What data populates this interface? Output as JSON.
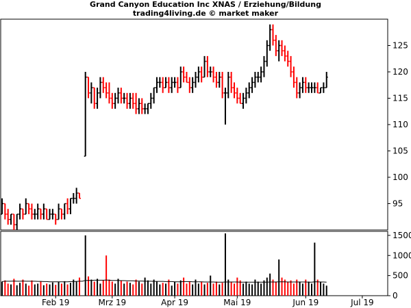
{
  "header": {
    "title": "Grand Canyon Education Inc XNAS / Erziehung/Bildung",
    "subtitle": "trading4living.de © market maker"
  },
  "colors": {
    "up": "#000000",
    "down": "#ff0000",
    "average": "#000000",
    "grid": "#000000"
  },
  "chart_data": [
    {
      "type": "ohlc",
      "title": "Grand Canyon Education Inc XNAS / Erziehung/Bildung",
      "ylim": [
        90,
        130
      ],
      "yticks": [
        95,
        100,
        105,
        110,
        115,
        120,
        125
      ],
      "ytick_labels": [
        "95",
        "100",
        "105",
        "110",
        "115",
        "120",
        "125"
      ],
      "x_labels": [
        {
          "label": "Feb 19",
          "index": 18
        },
        {
          "label": "Mrz 19",
          "index": 37
        },
        {
          "label": "Apr 19",
          "index": 58
        },
        {
          "label": "Mai 19",
          "index": 79
        },
        {
          "label": "Jun 19",
          "index": 102
        },
        {
          "label": "Jul 19",
          "index": 121
        }
      ],
      "n_days": 130,
      "bars": [
        [
          0,
          93,
          96,
          93,
          95
        ],
        [
          1,
          95,
          95,
          92,
          93
        ],
        [
          2,
          93,
          94,
          91,
          92
        ],
        [
          3,
          92,
          93,
          91,
          93
        ],
        [
          4,
          93,
          93,
          90,
          91
        ],
        [
          5,
          91,
          93,
          90,
          93
        ],
        [
          6,
          93,
          95,
          92,
          94
        ],
        [
          7,
          94,
          94,
          92,
          93
        ],
        [
          8,
          93,
          96,
          93,
          95
        ],
        [
          9,
          95,
          95,
          93,
          94
        ],
        [
          10,
          94,
          95,
          92,
          93
        ],
        [
          11,
          93,
          94,
          92,
          93
        ],
        [
          12,
          93,
          95,
          92,
          94
        ],
        [
          13,
          94,
          94,
          92,
          93
        ],
        [
          14,
          93,
          95,
          92,
          94
        ],
        [
          15,
          94,
          94,
          92,
          92
        ],
        [
          16,
          92,
          94,
          92,
          93
        ],
        [
          17,
          93,
          94,
          92,
          93
        ],
        [
          18,
          93,
          93,
          91,
          92
        ],
        [
          19,
          92,
          95,
          92,
          94
        ],
        [
          20,
          94,
          94,
          92,
          93
        ],
        [
          21,
          93,
          95,
          92,
          95
        ],
        [
          22,
          95,
          96,
          93,
          94
        ],
        [
          23,
          94,
          96,
          93,
          96
        ],
        [
          24,
          96,
          97,
          95,
          96
        ],
        [
          25,
          96,
          98,
          95,
          97
        ],
        [
          26,
          97,
          97,
          96,
          96
        ],
        [
          28,
          104,
          120,
          104,
          119
        ],
        [
          29,
          119,
          119,
          115,
          116
        ],
        [
          30,
          116,
          118,
          114,
          117
        ],
        [
          31,
          117,
          117,
          113,
          114
        ],
        [
          32,
          114,
          117,
          113,
          116
        ],
        [
          33,
          116,
          119,
          115,
          118
        ],
        [
          34,
          118,
          119,
          116,
          117
        ],
        [
          35,
          117,
          118,
          115,
          116
        ],
        [
          36,
          116,
          118,
          114,
          115
        ],
        [
          37,
          115,
          116,
          113,
          114
        ],
        [
          38,
          114,
          116,
          113,
          115
        ],
        [
          39,
          115,
          117,
          114,
          116
        ],
        [
          40,
          116,
          117,
          114,
          115
        ],
        [
          41,
          115,
          116,
          114,
          115
        ],
        [
          42,
          115,
          116,
          113,
          114
        ],
        [
          43,
          114,
          116,
          113,
          115
        ],
        [
          44,
          115,
          116,
          113,
          114
        ],
        [
          45,
          114,
          116,
          112,
          113
        ],
        [
          46,
          113,
          115,
          112,
          114
        ],
        [
          47,
          114,
          115,
          112,
          113
        ],
        [
          48,
          113,
          114,
          112,
          113
        ],
        [
          49,
          113,
          114,
          112,
          114
        ],
        [
          50,
          114,
          116,
          113,
          115
        ],
        [
          51,
          115,
          117,
          114,
          117
        ],
        [
          52,
          117,
          119,
          116,
          118
        ],
        [
          53,
          118,
          119,
          117,
          118
        ],
        [
          54,
          118,
          119,
          116,
          117
        ],
        [
          55,
          117,
          119,
          117,
          118
        ],
        [
          56,
          118,
          119,
          116,
          117
        ],
        [
          57,
          117,
          119,
          116,
          118
        ],
        [
          58,
          118,
          119,
          117,
          118
        ],
        [
          59,
          118,
          119,
          116,
          117
        ],
        [
          60,
          117,
          121,
          117,
          120
        ],
        [
          61,
          120,
          121,
          118,
          119
        ],
        [
          62,
          119,
          120,
          118,
          118
        ],
        [
          63,
          118,
          119,
          116,
          117
        ],
        [
          64,
          117,
          119,
          116,
          118
        ],
        [
          65,
          118,
          120,
          117,
          119
        ],
        [
          66,
          119,
          121,
          118,
          120
        ],
        [
          67,
          120,
          121,
          118,
          119
        ],
        [
          68,
          119,
          123,
          119,
          122
        ],
        [
          69,
          122,
          123,
          119,
          120
        ],
        [
          70,
          120,
          121,
          119,
          120
        ],
        [
          71,
          120,
          121,
          118,
          119
        ],
        [
          72,
          119,
          120,
          117,
          118
        ],
        [
          73,
          118,
          120,
          117,
          119
        ],
        [
          74,
          119,
          120,
          115,
          116
        ],
        [
          75,
          116,
          117,
          110,
          116
        ],
        [
          76,
          116,
          120,
          115,
          119
        ],
        [
          77,
          119,
          120,
          116,
          117
        ],
        [
          78,
          117,
          118,
          115,
          116
        ],
        [
          79,
          116,
          117,
          114,
          115
        ],
        [
          80,
          115,
          116,
          114,
          114
        ],
        [
          81,
          114,
          116,
          113,
          115
        ],
        [
          82,
          115,
          117,
          114,
          116
        ],
        [
          83,
          116,
          118,
          115,
          117
        ],
        [
          84,
          117,
          119,
          116,
          118
        ],
        [
          85,
          118,
          120,
          117,
          119
        ],
        [
          86,
          119,
          120,
          118,
          119
        ],
        [
          87,
          119,
          121,
          118,
          120
        ],
        [
          88,
          120,
          123,
          119,
          122
        ],
        [
          89,
          122,
          126,
          121,
          125
        ],
        [
          90,
          125,
          129,
          124,
          128
        ],
        [
          91,
          128,
          129,
          125,
          126
        ],
        [
          92,
          126,
          127,
          123,
          124
        ],
        [
          93,
          124,
          126,
          122,
          125
        ],
        [
          94,
          125,
          126,
          123,
          124
        ],
        [
          95,
          124,
          125,
          122,
          123
        ],
        [
          96,
          123,
          124,
          121,
          122
        ],
        [
          97,
          122,
          123,
          119,
          120
        ],
        [
          98,
          120,
          121,
          117,
          118
        ],
        [
          99,
          118,
          119,
          115,
          116
        ],
        [
          100,
          116,
          118,
          115,
          117
        ],
        [
          101,
          117,
          119,
          116,
          118
        ],
        [
          102,
          118,
          119,
          116,
          117
        ],
        [
          103,
          117,
          118,
          116,
          117
        ],
        [
          104,
          117,
          118,
          116,
          117
        ],
        [
          105,
          117,
          118,
          116,
          117
        ],
        [
          106,
          117,
          118,
          116,
          116
        ],
        [
          107,
          116,
          117,
          116,
          117
        ],
        [
          108,
          117,
          118,
          116,
          117
        ],
        [
          109,
          117,
          120,
          117,
          119
        ]
      ],
      "volume_axis": {
        "ylim": [
          0,
          1600
        ],
        "yticks": [
          0,
          500,
          1000,
          1500
        ],
        "ytick_labels": [
          "0",
          "500",
          "1000",
          "1500"
        ]
      },
      "volume": [
        350,
        380,
        300,
        280,
        420,
        260,
        320,
        400,
        300,
        250,
        380,
        280,
        300,
        350,
        260,
        300,
        280,
        330,
        270,
        340,
        300,
        360,
        280,
        320,
        400,
        350,
        450,
        0,
        1500,
        480,
        400,
        350,
        420,
        300,
        380,
        1000,
        400,
        350,
        300,
        420,
        380,
        300,
        350,
        320,
        280,
        400,
        350,
        300,
        450,
        380,
        300,
        400,
        350,
        280,
        320,
        300,
        400,
        250,
        350,
        300,
        380,
        450,
        300,
        350,
        280,
        400,
        300,
        350,
        280,
        320,
        500,
        300,
        350,
        280,
        320,
        1550,
        400,
        350,
        300,
        450,
        380,
        300,
        350,
        300,
        280,
        400,
        350,
        300,
        380,
        450,
        550,
        400,
        350,
        900,
        450,
        400,
        350,
        380,
        300,
        400,
        350,
        300,
        400,
        350,
        300,
        1320,
        400,
        350,
        300,
        250
      ],
      "volume_average": [
        350,
        360,
        360,
        360,
        365,
        360,
        360,
        365,
        360,
        360,
        360,
        360,
        355,
        355,
        350,
        350,
        345,
        345,
        345,
        345,
        345,
        345,
        345,
        350,
        350,
        355,
        360,
        360,
        380,
        380,
        380,
        385,
        385,
        385,
        385,
        390,
        385,
        380,
        380,
        380,
        375,
        375,
        370,
        370,
        370,
        365,
        365,
        365,
        360,
        360,
        360,
        355,
        355,
        355,
        355,
        350,
        350,
        350,
        345,
        345,
        345,
        350,
        350,
        350,
        345,
        345,
        345,
        345,
        340,
        340,
        340,
        340,
        335,
        335,
        335,
        340,
        340,
        340,
        340,
        340,
        335,
        335,
        335,
        335,
        335,
        335,
        335,
        335,
        335,
        335,
        340,
        340,
        340,
        345,
        345,
        345,
        340,
        340,
        340,
        340,
        340,
        340,
        340,
        335,
        335,
        345,
        345,
        340,
        340,
        335
      ]
    }
  ]
}
